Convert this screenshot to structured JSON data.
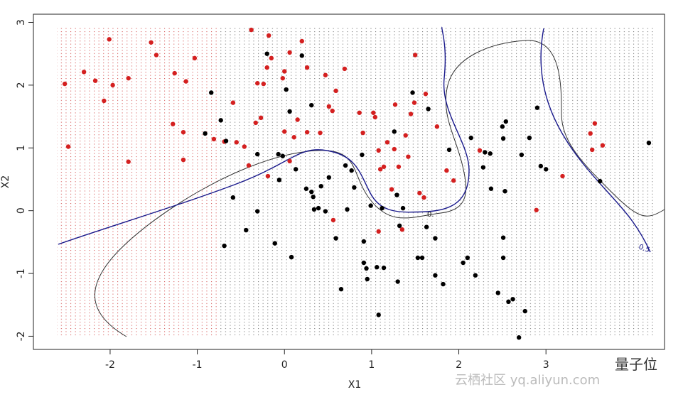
{
  "chart_data": {
    "type": "scatter",
    "x_label": "X1",
    "y_label": "X2",
    "xlim": [
      -2.88,
      4.36
    ],
    "ylim": [
      -2.21,
      3.13
    ],
    "xticks": [
      -2,
      -1,
      0,
      1,
      2,
      3
    ],
    "yticks": [
      -2,
      -1,
      0,
      1,
      2,
      3
    ],
    "contour_labels": [
      "0.5",
      "0."
    ],
    "series": [
      {
        "color": "#d42020",
        "x": [
          -2.52,
          -2.48,
          -2.3,
          -2.17,
          -2.07,
          -2.01,
          -1.97,
          -1.79,
          -1.79,
          -1.53,
          -1.47,
          -1.26,
          -1.28,
          -1.16,
          -1.16,
          -1.13,
          -1.03,
          -0.81,
          -0.69,
          -0.59,
          -0.55,
          -0.46,
          -0.41,
          -0.38,
          -0.33,
          -0.31,
          -0.27,
          -0.24,
          -0.2,
          -0.18,
          -0.15,
          -0.02,
          0.0,
          0.0,
          0.06,
          0.11,
          0.15,
          0.2,
          0.26,
          0.26,
          0.41,
          0.47,
          0.51,
          0.55,
          0.59,
          0.69,
          0.56,
          0.86,
          0.9,
          1.02,
          1.04,
          1.08,
          1.1,
          1.08,
          1.14,
          1.18,
          1.23,
          1.27,
          1.26,
          1.31,
          1.35,
          1.39,
          1.42,
          1.45,
          1.49,
          1.5,
          1.55,
          1.6,
          1.62,
          1.75,
          1.86,
          1.94,
          2.24,
          2.89,
          3.19,
          3.51,
          3.56,
          3.53,
          3.65,
          -0.19,
          0.06
        ],
        "y": [
          2.02,
          1.02,
          2.21,
          2.07,
          1.75,
          2.73,
          2.0,
          0.78,
          2.11,
          2.68,
          2.48,
          2.19,
          1.38,
          1.25,
          0.81,
          2.06,
          2.43,
          1.14,
          1.1,
          1.72,
          1.09,
          1.02,
          0.72,
          2.88,
          1.4,
          2.03,
          1.48,
          2.02,
          2.28,
          2.79,
          2.43,
          2.11,
          2.22,
          1.26,
          2.52,
          1.17,
          1.45,
          2.7,
          2.28,
          1.25,
          1.24,
          2.16,
          1.66,
          1.59,
          1.91,
          2.26,
          -0.15,
          1.56,
          1.24,
          1.56,
          1.49,
          0.96,
          0.66,
          -0.33,
          0.7,
          1.09,
          0.34,
          1.69,
          0.98,
          0.7,
          -0.3,
          1.2,
          0.86,
          1.54,
          1.72,
          2.48,
          0.28,
          0.21,
          1.86,
          1.34,
          0.64,
          0.48,
          0.96,
          0.01,
          0.55,
          1.23,
          1.39,
          0.97,
          1.04,
          0.55,
          0.79
        ]
      },
      {
        "color": "#000000",
        "x": [
          -0.84,
          -0.91,
          -0.73,
          -0.67,
          -0.59,
          -0.69,
          -0.44,
          -0.31,
          -0.31,
          -0.2,
          -0.11,
          -0.07,
          -0.06,
          -0.02,
          0.02,
          0.06,
          0.08,
          0.13,
          0.2,
          0.25,
          0.31,
          0.33,
          0.31,
          0.34,
          0.39,
          0.42,
          0.47,
          0.51,
          0.59,
          0.65,
          0.7,
          0.72,
          0.77,
          0.8,
          0.89,
          0.91,
          0.91,
          0.94,
          0.95,
          0.99,
          1.06,
          1.08,
          1.12,
          1.14,
          1.26,
          1.29,
          1.3,
          1.32,
          1.36,
          1.47,
          1.53,
          1.58,
          1.63,
          1.65,
          1.73,
          1.73,
          1.82,
          1.89,
          2.05,
          2.1,
          2.14,
          2.19,
          2.28,
          2.3,
          2.36,
          2.37,
          2.45,
          2.5,
          2.51,
          2.51,
          2.51,
          2.54,
          2.53,
          2.57,
          2.62,
          2.69,
          2.72,
          2.76,
          2.81,
          2.9,
          2.94,
          3.0,
          3.62,
          4.18
        ],
        "y": [
          1.88,
          1.23,
          1.44,
          1.11,
          0.21,
          -0.56,
          -0.31,
          -0.01,
          0.9,
          2.5,
          -0.52,
          0.9,
          0.49,
          0.87,
          1.93,
          1.58,
          -0.74,
          0.66,
          2.47,
          0.35,
          0.3,
          0.22,
          1.68,
          0.02,
          0.04,
          0.39,
          -0.01,
          0.53,
          -0.44,
          -1.25,
          0.72,
          0.02,
          0.64,
          0.37,
          0.89,
          -0.49,
          -0.83,
          -0.92,
          -1.09,
          0.08,
          -0.9,
          -1.66,
          0.04,
          -0.91,
          1.26,
          0.25,
          -1.13,
          -0.24,
          0.04,
          1.88,
          -0.75,
          -0.75,
          -0.26,
          1.62,
          -0.44,
          -1.03,
          -1.17,
          0.97,
          -0.83,
          -0.75,
          1.16,
          -1.03,
          0.69,
          0.93,
          0.91,
          0.35,
          -1.31,
          1.34,
          1.15,
          -0.43,
          -0.75,
          1.42,
          0.31,
          -1.45,
          -1.41,
          -2.02,
          0.89,
          -1.6,
          1.16,
          1.64,
          0.71,
          0.66,
          0.47,
          1.08
        ]
      }
    ]
  },
  "watermark": {
    "site": "云栖社区 yq.aliyun.com",
    "brand": "量子位"
  }
}
